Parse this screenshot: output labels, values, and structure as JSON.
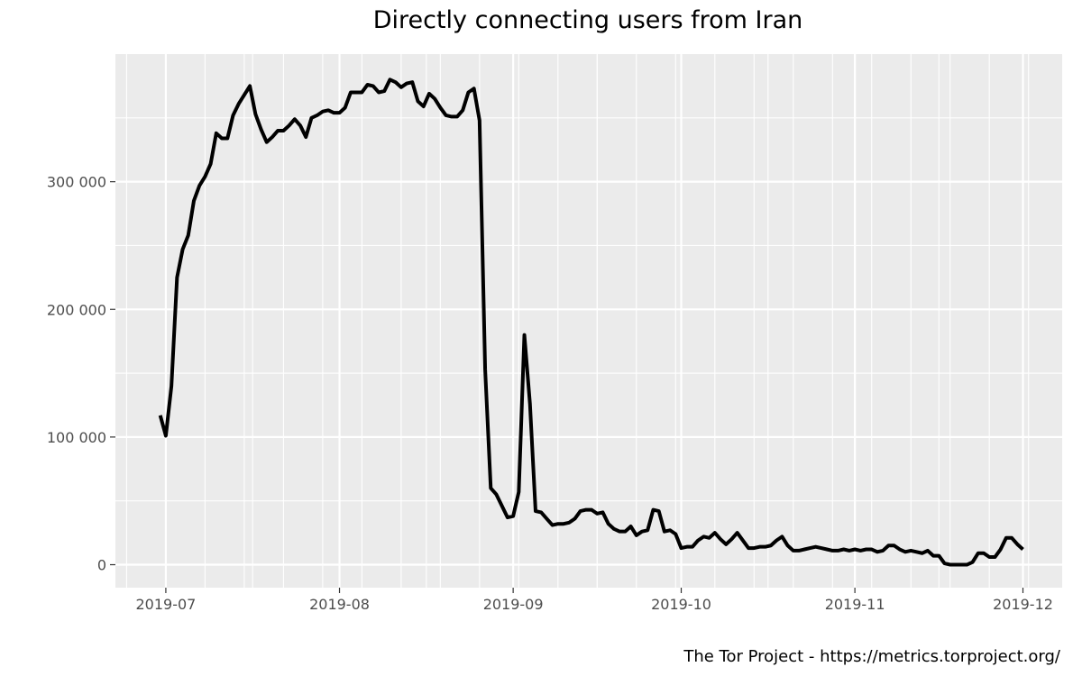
{
  "chart_data": {
    "type": "line",
    "title": "Directly connecting users from Iran",
    "caption": "The Tor Project - https://metrics.torproject.org/",
    "xlabel": "",
    "ylabel": "",
    "x_tick_labels": [
      "2019-07",
      "2019-08",
      "2019-09",
      "2019-10",
      "2019-11",
      "2019-12"
    ],
    "y_tick_labels": [
      "0",
      "100 000",
      "200 000",
      "300 000"
    ],
    "x_ticks": [
      "2019-07-01",
      "2019-08-01",
      "2019-09-01",
      "2019-10-01",
      "2019-11-01",
      "2019-12-01"
    ],
    "y_ticks": [
      0,
      100000,
      200000,
      300000
    ],
    "xlim": [
      "2019-06-22",
      "2019-12-08"
    ],
    "ylim": [
      -18000,
      400000
    ],
    "grid": true,
    "background": "#ebebeb",
    "grid_color": "#ffffff",
    "line_color": "#000000",
    "series": [
      {
        "values": [
          [
            "2019-06-30",
            117000
          ],
          [
            "2019-07-01",
            101000
          ],
          [
            "2019-07-02",
            140000
          ],
          [
            "2019-07-03",
            225000
          ],
          [
            "2019-07-04",
            247000
          ],
          [
            "2019-07-05",
            258000
          ],
          [
            "2019-07-06",
            285000
          ],
          [
            "2019-07-07",
            297000
          ],
          [
            "2019-07-08",
            304000
          ],
          [
            "2019-07-09",
            314000
          ],
          [
            "2019-07-10",
            338000
          ],
          [
            "2019-07-11",
            334000
          ],
          [
            "2019-07-12",
            334000
          ],
          [
            "2019-07-13",
            352000
          ],
          [
            "2019-07-14",
            361000
          ],
          [
            "2019-07-15",
            368000
          ],
          [
            "2019-07-16",
            375000
          ],
          [
            "2019-07-17",
            353000
          ],
          [
            "2019-07-18",
            341000
          ],
          [
            "2019-07-19",
            331000
          ],
          [
            "2019-07-20",
            335000
          ],
          [
            "2019-07-21",
            340000
          ],
          [
            "2019-07-22",
            340000
          ],
          [
            "2019-07-23",
            344000
          ],
          [
            "2019-07-24",
            349000
          ],
          [
            "2019-07-25",
            344000
          ],
          [
            "2019-07-26",
            335000
          ],
          [
            "2019-07-27",
            350000
          ],
          [
            "2019-07-28",
            352000
          ],
          [
            "2019-07-29",
            355000
          ],
          [
            "2019-07-30",
            356000
          ],
          [
            "2019-07-31",
            354000
          ],
          [
            "2019-08-01",
            354000
          ],
          [
            "2019-08-02",
            358000
          ],
          [
            "2019-08-03",
            370000
          ],
          [
            "2019-08-04",
            370000
          ],
          [
            "2019-08-05",
            370000
          ],
          [
            "2019-08-06",
            376000
          ],
          [
            "2019-08-07",
            375000
          ],
          [
            "2019-08-08",
            370000
          ],
          [
            "2019-08-09",
            371000
          ],
          [
            "2019-08-10",
            380000
          ],
          [
            "2019-08-11",
            378000
          ],
          [
            "2019-08-12",
            374000
          ],
          [
            "2019-08-13",
            377000
          ],
          [
            "2019-08-14",
            378000
          ],
          [
            "2019-08-15",
            363000
          ],
          [
            "2019-08-16",
            359000
          ],
          [
            "2019-08-17",
            369000
          ],
          [
            "2019-08-18",
            365000
          ],
          [
            "2019-08-19",
            358000
          ],
          [
            "2019-08-20",
            352000
          ],
          [
            "2019-08-21",
            351000
          ],
          [
            "2019-08-22",
            351000
          ],
          [
            "2019-08-23",
            356000
          ],
          [
            "2019-08-24",
            370000
          ],
          [
            "2019-08-25",
            373000
          ],
          [
            "2019-08-26",
            348000
          ],
          [
            "2019-08-27",
            153000
          ],
          [
            "2019-08-28",
            60000
          ],
          [
            "2019-08-29",
            55000
          ],
          [
            "2019-08-30",
            46000
          ],
          [
            "2019-08-31",
            37000
          ],
          [
            "2019-09-01",
            38000
          ],
          [
            "2019-09-02",
            57000
          ],
          [
            "2019-09-03",
            180000
          ],
          [
            "2019-09-04",
            126000
          ],
          [
            "2019-09-05",
            42000
          ],
          [
            "2019-09-06",
            41000
          ],
          [
            "2019-09-07",
            36000
          ],
          [
            "2019-09-08",
            31000
          ],
          [
            "2019-09-09",
            32000
          ],
          [
            "2019-09-10",
            32000
          ],
          [
            "2019-09-11",
            33000
          ],
          [
            "2019-09-12",
            36000
          ],
          [
            "2019-09-13",
            42000
          ],
          [
            "2019-09-14",
            43000
          ],
          [
            "2019-09-15",
            43000
          ],
          [
            "2019-09-16",
            40000
          ],
          [
            "2019-09-17",
            41000
          ],
          [
            "2019-09-18",
            32000
          ],
          [
            "2019-09-19",
            28000
          ],
          [
            "2019-09-20",
            26000
          ],
          [
            "2019-09-21",
            26000
          ],
          [
            "2019-09-22",
            30000
          ],
          [
            "2019-09-23",
            23000
          ],
          [
            "2019-09-24",
            26000
          ],
          [
            "2019-09-25",
            27000
          ],
          [
            "2019-09-26",
            43000
          ],
          [
            "2019-09-27",
            42000
          ],
          [
            "2019-09-28",
            26000
          ],
          [
            "2019-09-29",
            27000
          ],
          [
            "2019-09-30",
            24000
          ],
          [
            "2019-10-01",
            13000
          ],
          [
            "2019-10-02",
            14000
          ],
          [
            "2019-10-03",
            14000
          ],
          [
            "2019-10-04",
            19000
          ],
          [
            "2019-10-05",
            22000
          ],
          [
            "2019-10-06",
            21000
          ],
          [
            "2019-10-07",
            25000
          ],
          [
            "2019-10-08",
            20000
          ],
          [
            "2019-10-09",
            16000
          ],
          [
            "2019-10-10",
            20000
          ],
          [
            "2019-10-11",
            25000
          ],
          [
            "2019-10-12",
            19000
          ],
          [
            "2019-10-13",
            13000
          ],
          [
            "2019-10-14",
            13000
          ],
          [
            "2019-10-15",
            14000
          ],
          [
            "2019-10-16",
            14000
          ],
          [
            "2019-10-17",
            15000
          ],
          [
            "2019-10-18",
            19000
          ],
          [
            "2019-10-19",
            22000
          ],
          [
            "2019-10-20",
            15000
          ],
          [
            "2019-10-21",
            11000
          ],
          [
            "2019-10-22",
            11000
          ],
          [
            "2019-10-23",
            12000
          ],
          [
            "2019-10-24",
            13000
          ],
          [
            "2019-10-25",
            14000
          ],
          [
            "2019-10-26",
            13000
          ],
          [
            "2019-10-27",
            12000
          ],
          [
            "2019-10-28",
            11000
          ],
          [
            "2019-10-29",
            11000
          ],
          [
            "2019-10-30",
            12000
          ],
          [
            "2019-10-31",
            11000
          ],
          [
            "2019-11-01",
            12000
          ],
          [
            "2019-11-02",
            11000
          ],
          [
            "2019-11-03",
            12000
          ],
          [
            "2019-11-04",
            12000
          ],
          [
            "2019-11-05",
            10000
          ],
          [
            "2019-11-06",
            11000
          ],
          [
            "2019-11-07",
            15000
          ],
          [
            "2019-11-08",
            15000
          ],
          [
            "2019-11-09",
            12000
          ],
          [
            "2019-11-10",
            10000
          ],
          [
            "2019-11-11",
            11000
          ],
          [
            "2019-11-12",
            10000
          ],
          [
            "2019-11-13",
            9000
          ],
          [
            "2019-11-14",
            11000
          ],
          [
            "2019-11-15",
            7000
          ],
          [
            "2019-11-16",
            7000
          ],
          [
            "2019-11-17",
            1000
          ],
          [
            "2019-11-18",
            0
          ],
          [
            "2019-11-19",
            0
          ],
          [
            "2019-11-20",
            0
          ],
          [
            "2019-11-21",
            0
          ],
          [
            "2019-11-22",
            2000
          ],
          [
            "2019-11-23",
            9000
          ],
          [
            "2019-11-24",
            9000
          ],
          [
            "2019-11-25",
            6000
          ],
          [
            "2019-11-26",
            6000
          ],
          [
            "2019-11-27",
            12000
          ],
          [
            "2019-11-28",
            21000
          ],
          [
            "2019-11-29",
            21000
          ],
          [
            "2019-11-30",
            16000
          ],
          [
            "2019-12-01",
            12000
          ]
        ]
      }
    ]
  }
}
